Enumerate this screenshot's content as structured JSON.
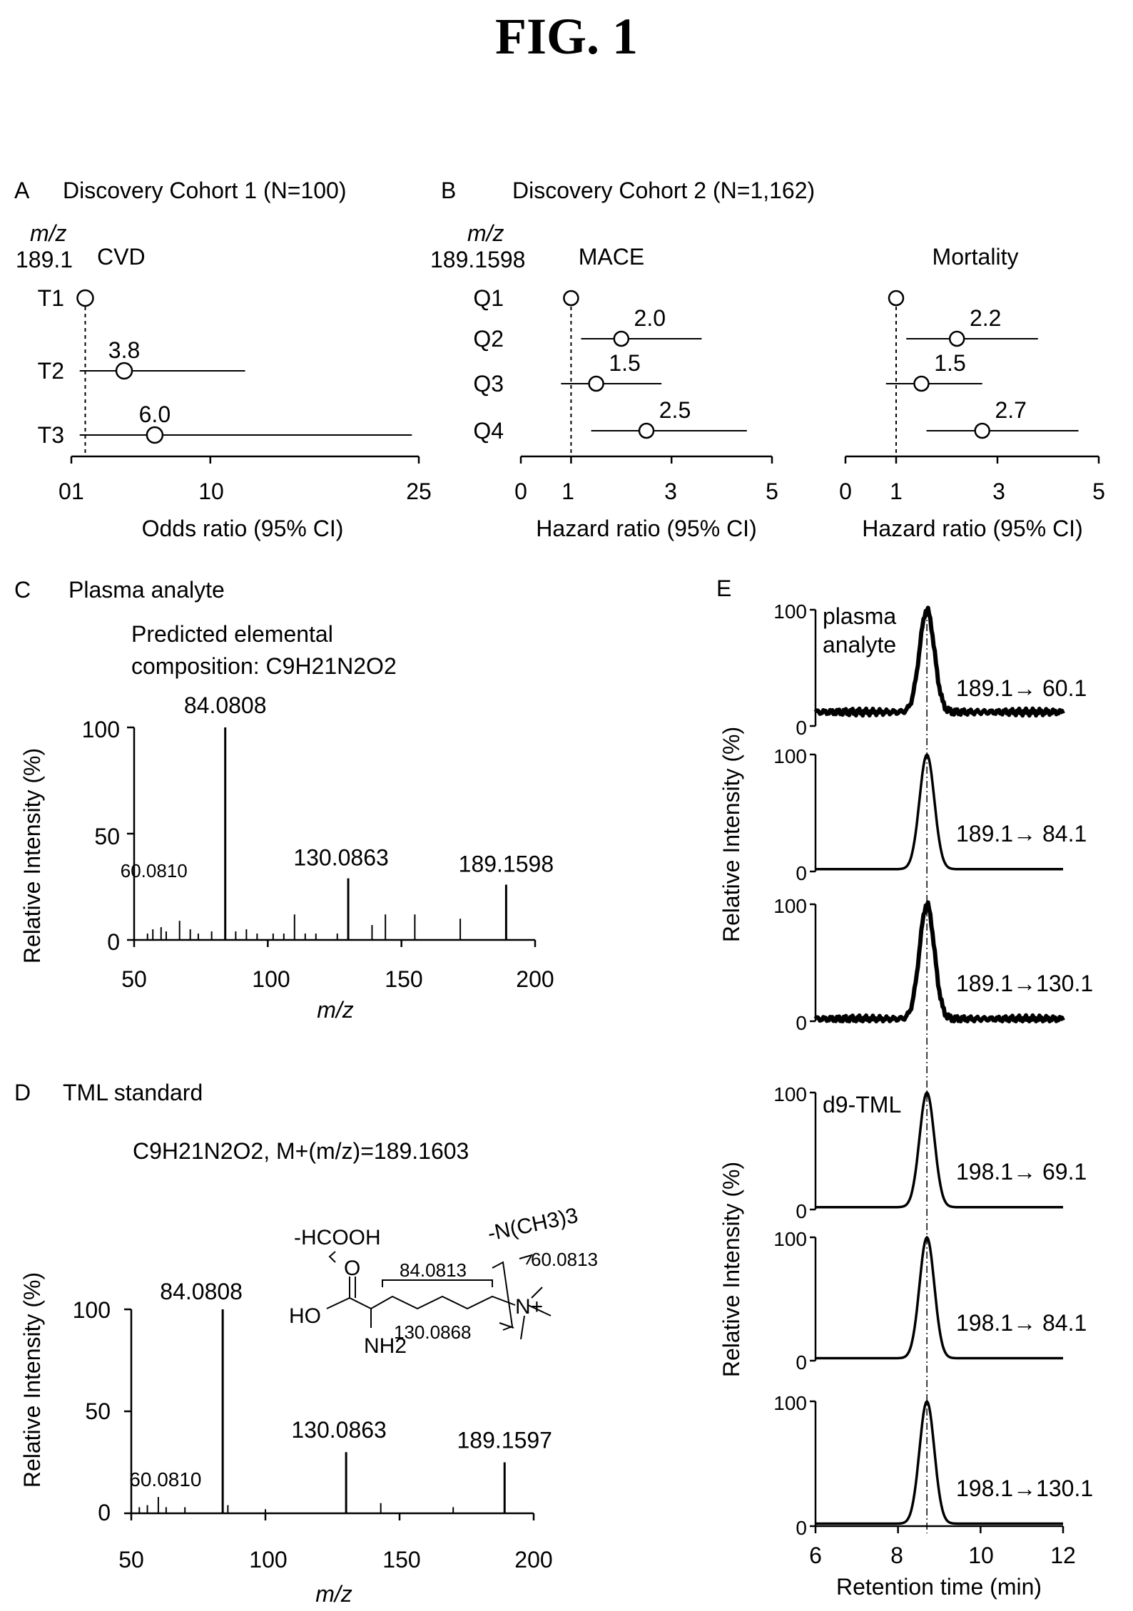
{
  "figure_title": "FIG. 1",
  "panel_a": {
    "letter": "A",
    "title": "Discovery Cohort 1 (N=100)",
    "mz_label": "m/z",
    "mz_value": "189.1",
    "outcome": "CVD",
    "xlabel": "Odds ratio (95% CI)",
    "ticks": [
      "0",
      "1",
      "10",
      "25"
    ]
  },
  "panel_b": {
    "letter": "B",
    "title": "Discovery Cohort 2 (N=1,162)",
    "mz_label": "m/z",
    "mz_value": "189.1598",
    "mace_label": "MACE",
    "mortality_label": "Mortality",
    "xlabel": "Hazard ratio (95% CI)",
    "ticks": [
      "0",
      "1",
      "3",
      "5"
    ]
  },
  "panel_c": {
    "letter": "C",
    "title": "Plasma analyte",
    "composition_line1": "Predicted elemental",
    "composition_line2": "composition: C9H21N2O2",
    "ylabel": "Relative Intensity (%)",
    "xlabel": "m/z",
    "yticks": [
      "0",
      "50",
      "100"
    ],
    "xticks": [
      "50",
      "100",
      "150",
      "200"
    ]
  },
  "panel_d": {
    "letter": "D",
    "title": "TML standard",
    "formula": "C9H21N2O2, M+(m/z)=189.1603",
    "ylabel": "Relative Intensity (%)",
    "xlabel": "m/z",
    "yticks": [
      "0",
      "50",
      "100"
    ],
    "xticks": [
      "50",
      "100",
      "150",
      "200"
    ],
    "structure_labels": {
      "formic": "-HCOOH",
      "amine": "-N(CH3)3",
      "frag84": "84.0813",
      "frag60": "60.0813",
      "frag130": "130.0868",
      "ho": "HO",
      "o": "O",
      "nh2": "NH2",
      "n_plus": "N+"
    }
  },
  "panel_e": {
    "letter": "E",
    "ylabel_top": "Relative Intensity (%)",
    "ylabel_bottom": "Relative Intensity (%)",
    "xlabel": "Retention time (min)",
    "xticks": [
      "6",
      "8",
      "10",
      "12"
    ],
    "ytick_top": "100",
    "ytick_bottom": "0",
    "traces": [
      {
        "label": "plasma analyte",
        "transition": "189.1→ 60.1"
      },
      {
        "label": "",
        "transition": "189.1→ 84.1"
      },
      {
        "label": "",
        "transition": "189.1→130.1"
      },
      {
        "label": "d9-TML",
        "transition": "198.1→ 69.1"
      },
      {
        "label": "",
        "transition": "198.1→ 84.1"
      },
      {
        "label": "",
        "transition": "198.1→130.1"
      }
    ]
  },
  "chart_data": [
    {
      "type": "scatter",
      "title": "Discovery Cohort 1 (N=100)",
      "xlabel": "Odds ratio (95% CI)",
      "xlim": [
        0,
        25
      ],
      "reference_line": 1,
      "categories": [
        "T1",
        "T2",
        "T3"
      ],
      "values": [
        1,
        3.8,
        6.0
      ],
      "ci_low": [
        null,
        0.6,
        0.6
      ],
      "ci_high": [
        null,
        12.5,
        24.5
      ],
      "value_labels": [
        "",
        "3.8",
        "6.0"
      ]
    },
    {
      "type": "scatter",
      "title": "MACE",
      "xlabel": "Hazard ratio (95% CI)",
      "xlim": [
        0,
        5
      ],
      "reference_line": 1,
      "categories": [
        "Q1",
        "Q2",
        "Q3",
        "Q4"
      ],
      "values": [
        1,
        2.0,
        1.5,
        2.5
      ],
      "ci_low": [
        null,
        1.2,
        0.8,
        1.4
      ],
      "ci_high": [
        null,
        3.6,
        2.8,
        4.5
      ],
      "value_labels": [
        "",
        "2.0",
        "1.5",
        "2.5"
      ]
    },
    {
      "type": "scatter",
      "title": "Mortality",
      "xlabel": "Hazard ratio (95% CI)",
      "xlim": [
        0,
        5
      ],
      "reference_line": 1,
      "categories": [
        "Q1",
        "Q2",
        "Q3",
        "Q4"
      ],
      "values": [
        1,
        2.2,
        1.5,
        2.7
      ],
      "ci_low": [
        null,
        1.2,
        0.8,
        1.6
      ],
      "ci_high": [
        null,
        3.8,
        2.7,
        4.6
      ],
      "value_labels": [
        "",
        "2.2",
        "1.5",
        "2.7"
      ]
    },
    {
      "type": "bar",
      "title": "Plasma analyte",
      "xlabel": "m/z",
      "ylabel": "Relative Intensity (%)",
      "xlim": [
        50,
        200
      ],
      "ylim": [
        0,
        100
      ],
      "x": [
        84.0808,
        130.0863,
        189.1598,
        60.081,
        55,
        57,
        62,
        67,
        71,
        74,
        79,
        88,
        92,
        96,
        102,
        106,
        110,
        114,
        118,
        126,
        139,
        144,
        155,
        172
      ],
      "values": [
        100,
        29,
        26,
        6,
        3,
        5,
        4,
        9,
        5,
        3,
        4,
        4,
        5,
        3,
        3,
        3,
        12,
        3,
        3,
        3,
        7,
        12,
        12,
        10
      ],
      "peak_labels": [
        "84.0808",
        "130.0863",
        "189.1598",
        "60.0810"
      ]
    },
    {
      "type": "bar",
      "title": "TML standard",
      "xlabel": "m/z",
      "ylabel": "Relative Intensity (%)",
      "xlim": [
        50,
        200
      ],
      "ylim": [
        0,
        100
      ],
      "x": [
        84.0808,
        130.0863,
        189.1597,
        60.081,
        53,
        56,
        63,
        70,
        86,
        100,
        143,
        170
      ],
      "values": [
        100,
        30,
        25,
        8,
        3,
        4,
        3,
        3,
        4,
        2,
        5,
        3
      ],
      "peak_labels": [
        "84.0808",
        "130.0863",
        "189.1597",
        "60.0810"
      ]
    },
    {
      "type": "line",
      "title": "",
      "xlabel": "Retention time (min)",
      "ylabel": "Relative Intensity (%)",
      "xlim": [
        6,
        12
      ],
      "ylim": [
        0,
        100
      ],
      "peak_retention_time": 8.7,
      "series": [
        {
          "name": "189.1→ 60.1",
          "peak": 100,
          "baseline": 12,
          "noisy": true
        },
        {
          "name": "189.1→ 84.1",
          "peak": 100,
          "baseline": 2,
          "noisy": false
        },
        {
          "name": "189.1→130.1",
          "peak": 100,
          "baseline": 2,
          "noisy": true
        },
        {
          "name": "198.1→ 69.1",
          "peak": 100,
          "baseline": 2,
          "noisy": false
        },
        {
          "name": "198.1→ 84.1",
          "peak": 100,
          "baseline": 2,
          "noisy": false
        },
        {
          "name": "198.1→130.1",
          "peak": 100,
          "baseline": 2,
          "noisy": false
        }
      ]
    }
  ]
}
